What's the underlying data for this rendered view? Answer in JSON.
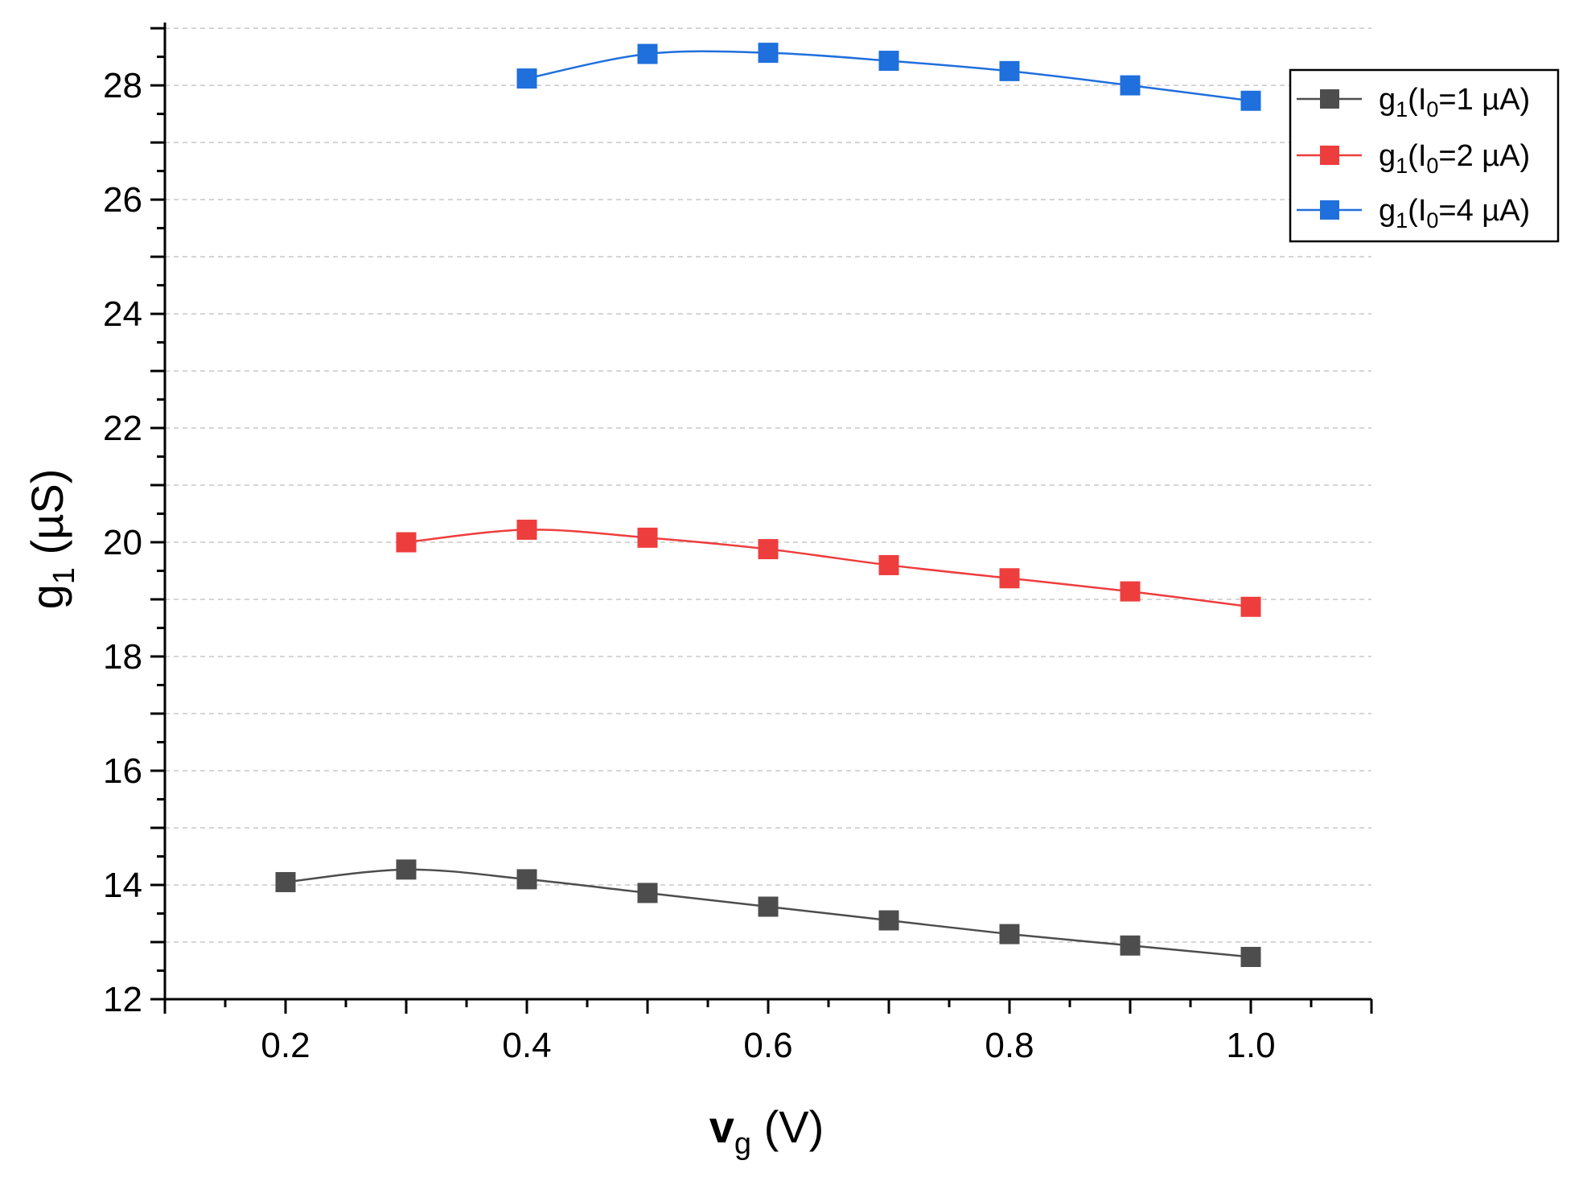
{
  "chart_data": {
    "type": "line",
    "xlabel": {
      "main": "v",
      "sub": "g",
      "rest": " (V)"
    },
    "ylabel": {
      "main": "g",
      "sub": "1",
      "rest": " (µS)"
    },
    "xlim": [
      0.1,
      1.1
    ],
    "ylim": [
      12,
      29.1
    ],
    "x_ticks": [
      0.2,
      0.4,
      0.6,
      0.8,
      1.0
    ],
    "x_tick_labels": [
      "0.2",
      "0.4",
      "0.6",
      "0.8",
      "1.0"
    ],
    "y_ticks": [
      12,
      14,
      16,
      18,
      20,
      22,
      24,
      26,
      28
    ],
    "y_tick_labels": [
      "12",
      "14",
      "16",
      "18",
      "20",
      "22",
      "24",
      "26",
      "28"
    ],
    "grid": "horizontal dashed",
    "legend_position": "top-right",
    "marker": "square",
    "series": [
      {
        "name": "g1(I0=1 µA)",
        "legend": {
          "a": "g",
          "a_sub": "1",
          "b": "(I",
          "b_sub": "0",
          "c": "=1 µA)"
        },
        "color": "#4d4d4d",
        "x": [
          0.2,
          0.3,
          0.4,
          0.5,
          0.6,
          0.7,
          0.8,
          0.9,
          1.0
        ],
        "y": [
          14.05,
          14.27,
          14.1,
          13.86,
          13.62,
          13.38,
          13.14,
          12.94,
          12.74
        ]
      },
      {
        "name": "g1(I0=2 µA)",
        "legend": {
          "a": "g",
          "a_sub": "1",
          "b": "(I",
          "b_sub": "0",
          "c": "=2 µA)"
        },
        "color": "#ee3d3d",
        "x": [
          0.3,
          0.4,
          0.5,
          0.6,
          0.7,
          0.8,
          0.9,
          1.0
        ],
        "y": [
          20.0,
          20.22,
          20.08,
          19.88,
          19.6,
          19.37,
          19.14,
          18.87
        ]
      },
      {
        "name": "g1(I0=4 µA)",
        "legend": {
          "a": "g",
          "a_sub": "1",
          "b": "(I",
          "b_sub": "0",
          "c": "=4 µA)"
        },
        "color": "#1f6fdc",
        "x": [
          0.4,
          0.5,
          0.6,
          0.7,
          0.8,
          0.9,
          1.0
        ],
        "y": [
          28.12,
          28.55,
          28.57,
          28.43,
          28.25,
          28.0,
          27.73
        ]
      }
    ]
  }
}
